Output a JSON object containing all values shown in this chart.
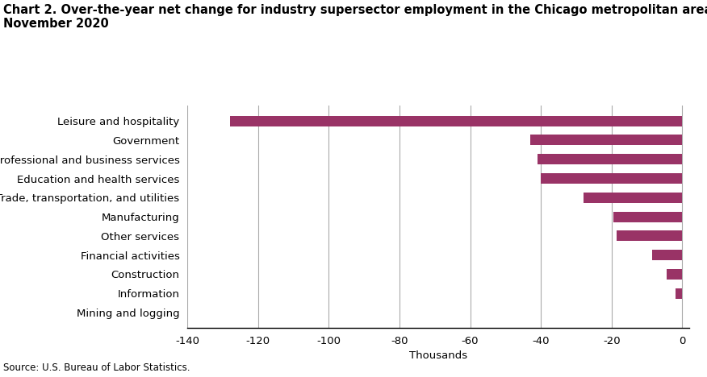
{
  "title_line1": "Chart 2. Over-the-year net change for industry supersector employment in the Chicago metropolitan area,",
  "title_line2": "November 2020",
  "categories": [
    "Mining and logging",
    "Information",
    "Construction",
    "Financial activities",
    "Other services",
    "Manufacturing",
    "Trade, transportation, and utilities",
    "Education and health services",
    "Professional and business services",
    "Government",
    "Leisure and hospitality"
  ],
  "values": [
    -0.1,
    -2.0,
    -4.5,
    -8.5,
    -18.5,
    -19.5,
    -28.0,
    -40.0,
    -41.0,
    -43.0,
    -128.0
  ],
  "bar_color": "#993366",
  "xlim": [
    -140,
    2
  ],
  "xticks": [
    -140,
    -120,
    -100,
    -80,
    -60,
    -40,
    -20,
    0
  ],
  "xticklabels": [
    "-140",
    "-120",
    "-100",
    "-80",
    "-60",
    "-40",
    "-20",
    "0"
  ],
  "xlabel": "Thousands",
  "source": "Source: U.S. Bureau of Labor Statistics.",
  "title_fontsize": 10.5,
  "label_fontsize": 9.5,
  "tick_fontsize": 9.5,
  "source_fontsize": 8.5,
  "background_color": "#ffffff",
  "grid_color": "#aaaaaa",
  "bar_height": 0.55
}
